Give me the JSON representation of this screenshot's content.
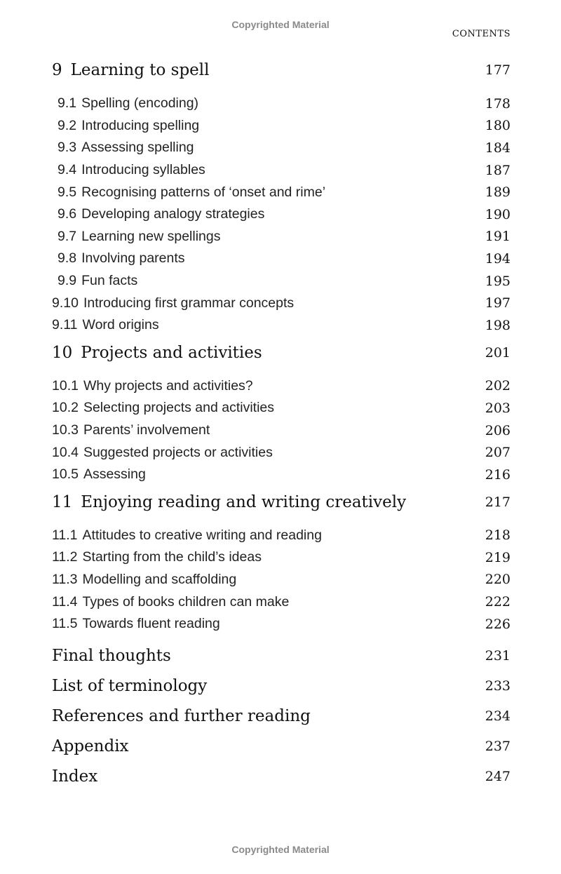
{
  "watermark": "Copyrighted Material",
  "running_head": "CONTENTS",
  "chapters": [
    {
      "num": "9",
      "title": "Learning to spell",
      "page": "177",
      "sections": [
        {
          "num": "9.1",
          "title": "Spelling (encoding)",
          "page": "178"
        },
        {
          "num": "9.2",
          "title": "Introducing spelling",
          "page": "180"
        },
        {
          "num": "9.3",
          "title": "Assessing spelling",
          "page": "184"
        },
        {
          "num": "9.4",
          "title": "Introducing syllables",
          "page": "187"
        },
        {
          "num": "9.5",
          "title": "Recognising patterns of ‘onset and rime’",
          "page": "189"
        },
        {
          "num": "9.6",
          "title": "Developing analogy strategies",
          "page": "190"
        },
        {
          "num": "9.7",
          "title": "Learning new spellings",
          "page": "191"
        },
        {
          "num": "9.8",
          "title": "Involving parents",
          "page": "194"
        },
        {
          "num": "9.9",
          "title": "Fun facts",
          "page": "195"
        },
        {
          "num": "9.10",
          "title": "Introducing first grammar concepts",
          "page": "197"
        },
        {
          "num": "9.11",
          "title": "Word origins",
          "page": "198"
        }
      ]
    },
    {
      "num": "10",
      "title": "Projects and activities",
      "page": "201",
      "sections": [
        {
          "num": "10.1",
          "title": "Why projects and activities?",
          "page": "202"
        },
        {
          "num": "10.2",
          "title": "Selecting projects and activities",
          "page": "203"
        },
        {
          "num": "10.3",
          "title": "Parents’ involvement",
          "page": "206"
        },
        {
          "num": "10.4",
          "title": "Suggested projects or activities",
          "page": "207"
        },
        {
          "num": "10.5",
          "title": "Assessing",
          "page": "216"
        }
      ]
    },
    {
      "num": "11",
      "title": "Enjoying reading and writing creatively",
      "page": "217",
      "sections": [
        {
          "num": "11.1",
          "title": "Attitudes to creative writing and reading",
          "page": "218"
        },
        {
          "num": "11.2",
          "title": "Starting from the child’s ideas",
          "page": "219"
        },
        {
          "num": "11.3",
          "title": "Modelling and scaffolding",
          "page": "220"
        },
        {
          "num": "11.4",
          "title": "Types of books children can make",
          "page": "222"
        },
        {
          "num": "11.5",
          "title": "Towards fluent reading",
          "page": "226"
        }
      ]
    }
  ],
  "end_matter": [
    {
      "title": "Final thoughts",
      "page": "231"
    },
    {
      "title": "List of terminology",
      "page": "233"
    },
    {
      "title": "References and further reading",
      "page": "234"
    },
    {
      "title": "Appendix",
      "page": "237"
    },
    {
      "title": "Index",
      "page": "247"
    }
  ]
}
